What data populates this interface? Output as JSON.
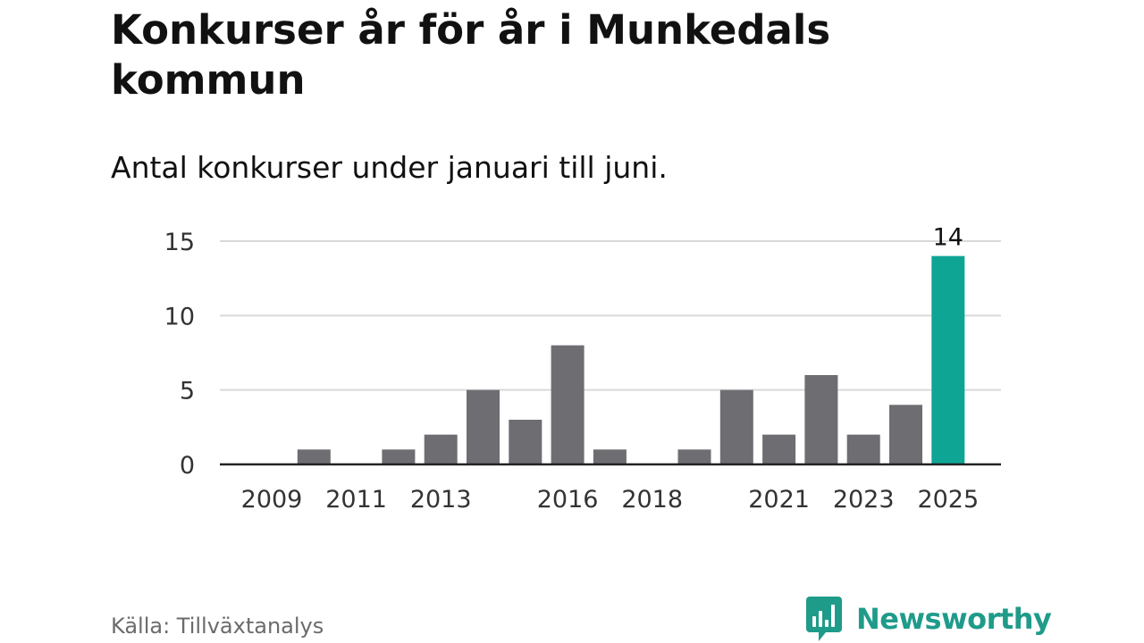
{
  "header": {
    "title": "Konkurser år för år i Munkedals kommun",
    "subtitle": "Antal konkurser under januari till juni."
  },
  "footer": {
    "source": "Källa: Tillväxtanalys",
    "brand": "Newsworthy",
    "brand_icon": "bar-chart-speech-bubble-icon",
    "brand_color": "#1f9b8a"
  },
  "chart_data": {
    "type": "bar",
    "categories": [
      "2009",
      "2010",
      "2011",
      "2012",
      "2013",
      "2014",
      "2015",
      "2016",
      "2017",
      "2018",
      "2019",
      "2020",
      "2021",
      "2022",
      "2023",
      "2024",
      "2025"
    ],
    "values": [
      0,
      1,
      0,
      1,
      2,
      5,
      3,
      8,
      1,
      0,
      1,
      5,
      2,
      6,
      2,
      4,
      14
    ],
    "x_tick_labels": [
      "2009",
      "2011",
      "2013",
      "2016",
      "2018",
      "2021",
      "2023",
      "2025"
    ],
    "y_ticks": [
      0,
      5,
      10,
      15
    ],
    "ylim": [
      0,
      15
    ],
    "grid": true,
    "bar_color": "#6e6d72",
    "highlight_color": "#0fa595",
    "highlight_category": "2025",
    "data_labels": [
      {
        "category": "2025",
        "value": 14
      }
    ]
  }
}
